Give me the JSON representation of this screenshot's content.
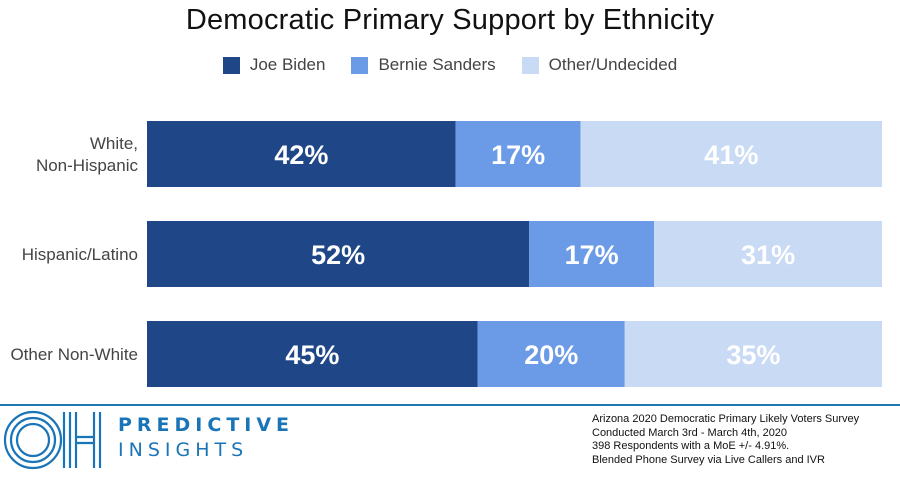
{
  "chart_data": {
    "type": "bar",
    "orientation": "horizontal",
    "stacked": true,
    "title": "Democratic Primary Support by Ethnicity",
    "categories": [
      "White, Non-Hispanic",
      "Hispanic/Latino",
      "Other Non-White"
    ],
    "series": [
      {
        "name": "Joe Biden",
        "values": [
          42,
          52,
          45
        ],
        "color": "#1f4788"
      },
      {
        "name": "Bernie Sanders",
        "values": [
          17,
          17,
          20
        ],
        "color": "#6b9be6"
      },
      {
        "name": "Other/Undecided",
        "values": [
          41,
          31,
          35
        ],
        "color": "#c9daf5"
      }
    ],
    "value_suffix": "%",
    "xlim": [
      0,
      100
    ],
    "legend_position": "top",
    "grid": false
  },
  "footer": {
    "brand_line1": "PREDICTIVE",
    "brand_line2": "INSIGHTS",
    "logo_icon": "oh-logo-icon",
    "notes": [
      "Arizona 2020 Democratic Primary Likely Voters Survey",
      "Conducted March 3rd - March 4th, 2020",
      "398 Respondents with a MoE +/- 4.91%.",
      "Blended Phone Survey via Live Callers and IVR"
    ]
  }
}
